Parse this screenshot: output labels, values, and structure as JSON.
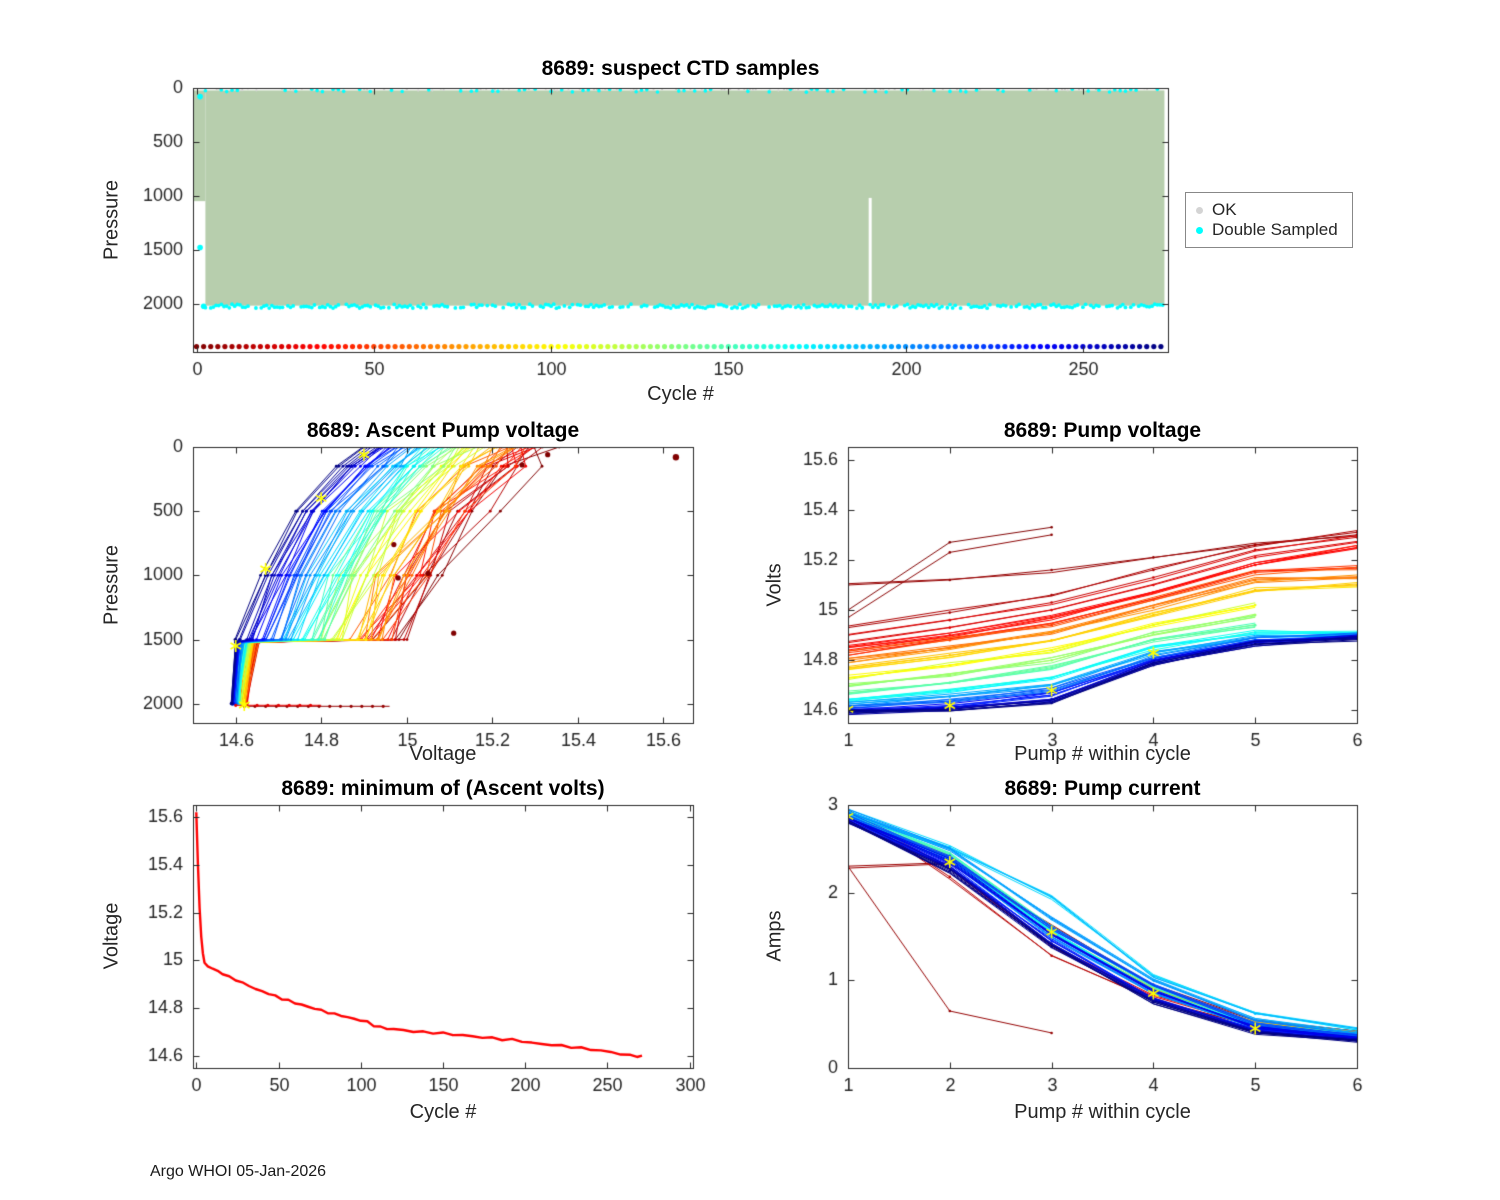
{
  "page": {
    "footer": "Argo WHOI 05-Jan-2026"
  },
  "colors": {
    "ok": "#d4d4d4",
    "double_sampled": "#00ffff",
    "ctd_fill": "#b7cead",
    "min_line": "#ff0000",
    "asterisk": "#ffff00",
    "axis": "#262626"
  },
  "chart_data": [
    {
      "id": "suspect-ctd-samples",
      "type": "scatter",
      "title": "8689: suspect CTD samples",
      "xlabel": "Cycle #",
      "ylabel": "Pressure",
      "xlim": [
        -1,
        274
      ],
      "xticks": [
        0,
        50,
        100,
        150,
        200,
        250
      ],
      "ylim": [
        0,
        2450
      ],
      "yticks": [
        0,
        500,
        1000,
        1500,
        2000
      ],
      "y_reversed": true,
      "ok_region": {
        "x0": 2.5,
        "x1": 273,
        "y0": 22,
        "y1": 2020
      },
      "left_partial_region": {
        "x0": -1,
        "x1": 2.5,
        "y0": 22,
        "y1": 1050
      },
      "white_gaps": [
        {
          "x": 190,
          "y0": 1020,
          "y1": 2020
        }
      ],
      "double_sampled": {
        "bottom_row_pressure": 2025,
        "top_row_pressure": 25,
        "row_x0": 2.5,
        "row_x1": 273,
        "extra_points": [
          [
            1,
            80
          ],
          [
            1,
            1480
          ],
          [
            2,
            2025
          ]
        ]
      },
      "cycle_color_row": {
        "pressure": 2400,
        "x0": 0,
        "x1": 272,
        "n_markers": 137,
        "colormap": "jet-reversed"
      },
      "legend": [
        {
          "label": "OK",
          "color": "#d4d4d4"
        },
        {
          "label": "Double Sampled",
          "color": "#00ffff"
        }
      ]
    },
    {
      "id": "ascent-pump-voltage",
      "type": "line",
      "title": "8689: Ascent Pump voltage",
      "xlabel": "Voltage",
      "ylabel": "Pressure",
      "xlim": [
        14.5,
        15.67
      ],
      "xticks": [
        14.6,
        14.8,
        15,
        15.2,
        15.4,
        15.6
      ],
      "ylim": [
        0,
        2150
      ],
      "yticks": [
        0,
        500,
        1000,
        1500,
        2000
      ],
      "y_reversed": true,
      "n_cycles": 270,
      "colormap": "jet-reversed",
      "family": {
        "pressures": [
          2000,
          1520,
          1500,
          1000,
          500,
          150,
          0
        ],
        "v_latest_cycle": [
          14.59,
          14.6,
          14.6,
          14.66,
          14.74,
          14.84,
          14.9
        ],
        "v_earliest_cycle": [
          14.62,
          14.65,
          15.0,
          15.08,
          15.18,
          15.28,
          15.32
        ],
        "n_lines": 80
      },
      "deep_segments": [
        {
          "v0": 14.62,
          "v1": 14.96,
          "p": 2020,
          "t": 0.02
        },
        {
          "v0": 14.6,
          "v1": 14.8,
          "p": 2012,
          "t": 0.1
        }
      ],
      "stray_points": [
        [
          15.11,
          1450
        ],
        [
          14.98,
          1020
        ],
        [
          15.05,
          985
        ],
        [
          15.33,
          60
        ],
        [
          15.27,
          140
        ],
        [
          14.97,
          760
        ]
      ],
      "outlier_point": [
        15.63,
        80
      ],
      "asterisks": [
        [
          14.9,
          60
        ],
        [
          14.8,
          400
        ],
        [
          14.67,
          950
        ],
        [
          14.6,
          1550
        ],
        [
          14.62,
          2010
        ]
      ]
    },
    {
      "id": "pump-voltage",
      "type": "line",
      "title": "8689: Pump voltage",
      "xlabel": "Pump # within cycle",
      "ylabel": "Volts",
      "xlim": [
        1,
        6
      ],
      "xticks": [
        1,
        2,
        3,
        4,
        5,
        6
      ],
      "ylim": [
        14.55,
        15.65
      ],
      "yticks": [
        14.6,
        14.8,
        15,
        15.2,
        15.4,
        15.6
      ],
      "y_reversed": false,
      "colormap": "jet-reversed",
      "series": [
        {
          "t": 0.0,
          "x": [
            1,
            2,
            3
          ],
          "y": [
            15.0,
            15.27,
            15.33
          ]
        },
        {
          "t": 0.01,
          "x": [
            1,
            2,
            3
          ],
          "y": [
            14.97,
            15.23,
            15.3
          ]
        },
        {
          "t": 0.02,
          "x": [
            1,
            2,
            3,
            4,
            5,
            6
          ],
          "y": [
            15.1,
            15.12,
            15.16,
            15.21,
            15.26,
            15.3
          ]
        },
        {
          "t": 0.04,
          "x": [
            1,
            2,
            3,
            4,
            5,
            6
          ],
          "y": [
            14.93,
            14.99,
            15.06,
            15.16,
            15.26,
            15.31
          ]
        },
        {
          "t": 0.07,
          "x": [
            1,
            2,
            3,
            4,
            5,
            6
          ],
          "y": [
            14.9,
            14.96,
            15.03,
            15.13,
            15.24,
            15.29
          ]
        },
        {
          "t": 0.1,
          "x": [
            1,
            2,
            3,
            4,
            5,
            6
          ],
          "y": [
            14.87,
            14.93,
            15.0,
            15.1,
            15.21,
            15.27
          ]
        },
        {
          "t": 0.14,
          "x": [
            1,
            2,
            3,
            4,
            5,
            6
          ],
          "y": [
            14.85,
            14.9,
            14.97,
            15.07,
            15.18,
            15.25
          ]
        },
        {
          "t": 0.18,
          "x": [
            1,
            2,
            3,
            4,
            5,
            6
          ],
          "y": [
            14.83,
            14.88,
            14.94,
            15.04,
            15.15,
            15.17
          ]
        },
        {
          "t": 0.25,
          "x": [
            1,
            2,
            3,
            4,
            5,
            6
          ],
          "y": [
            14.8,
            14.85,
            14.91,
            15.01,
            15.12,
            15.13
          ]
        },
        {
          "t": 0.32,
          "x": [
            1,
            2,
            3,
            4,
            5,
            6
          ],
          "y": [
            14.77,
            14.82,
            14.88,
            14.98,
            15.08,
            15.1
          ]
        },
        {
          "t": 0.4,
          "x": [
            1,
            2,
            3,
            4,
            5
          ],
          "y": [
            14.73,
            14.78,
            14.84,
            14.94,
            15.02
          ]
        },
        {
          "t": 0.47,
          "x": [
            1,
            2,
            3,
            4,
            5
          ],
          "y": [
            14.7,
            14.74,
            14.8,
            14.91,
            14.98
          ]
        },
        {
          "t": 0.54,
          "x": [
            1,
            2,
            3,
            4,
            5
          ],
          "y": [
            14.67,
            14.71,
            14.77,
            14.88,
            14.94
          ]
        },
        {
          "t": 0.62,
          "x": [
            1,
            2,
            3,
            4,
            5,
            6
          ],
          "y": [
            14.645,
            14.68,
            14.73,
            14.85,
            14.91,
            14.91
          ]
        },
        {
          "t": 0.7,
          "x": [
            1,
            2,
            3,
            4,
            5,
            6
          ],
          "y": [
            14.625,
            14.655,
            14.7,
            14.83,
            14.89,
            14.9
          ]
        },
        {
          "t": 0.78,
          "x": [
            1,
            2,
            3,
            4,
            5,
            6
          ],
          "y": [
            14.61,
            14.635,
            14.68,
            14.81,
            14.88,
            14.9
          ]
        },
        {
          "t": 0.86,
          "x": [
            1,
            2,
            3,
            4,
            5,
            6
          ],
          "y": [
            14.6,
            14.62,
            14.66,
            14.8,
            14.875,
            14.895
          ]
        },
        {
          "t": 0.93,
          "x": [
            1,
            2,
            3,
            4,
            5,
            6
          ],
          "y": [
            14.595,
            14.61,
            14.645,
            14.79,
            14.87,
            14.89
          ]
        },
        {
          "t": 1.0,
          "x": [
            1,
            2,
            3,
            4,
            5,
            6
          ],
          "y": [
            14.59,
            14.6,
            14.63,
            14.78,
            14.865,
            14.885
          ]
        }
      ],
      "asterisks": [
        [
          1,
          14.605
        ],
        [
          2,
          14.62
        ],
        [
          3,
          14.68
        ],
        [
          4,
          14.83
        ]
      ]
    },
    {
      "id": "minimum-ascent-volts",
      "type": "line",
      "title": "8689: minimum of (Ascent volts)",
      "xlabel": "Cycle #",
      "ylabel": "Voltage",
      "xlim": [
        -2,
        302
      ],
      "xticks": [
        0,
        50,
        100,
        150,
        200,
        250,
        300
      ],
      "ylim": [
        14.55,
        15.65
      ],
      "yticks": [
        14.6,
        14.8,
        15,
        15.2,
        15.4,
        15.6
      ],
      "y_reversed": false,
      "line_color": "#ff0000",
      "points": [
        [
          0,
          15.62
        ],
        [
          1,
          15.4
        ],
        [
          2,
          15.22
        ],
        [
          3,
          15.1
        ],
        [
          4,
          15.03
        ],
        [
          5,
          14.99
        ],
        [
          7,
          14.975
        ],
        [
          10,
          14.965
        ],
        [
          13,
          14.955
        ],
        [
          16,
          14.945
        ],
        [
          20,
          14.93
        ],
        [
          24,
          14.92
        ],
        [
          28,
          14.905
        ],
        [
          32,
          14.895
        ],
        [
          36,
          14.88
        ],
        [
          40,
          14.87
        ],
        [
          44,
          14.862
        ],
        [
          48,
          14.85
        ],
        [
          52,
          14.84
        ],
        [
          56,
          14.832
        ],
        [
          60,
          14.822
        ],
        [
          64,
          14.815
        ],
        [
          68,
          14.805
        ],
        [
          72,
          14.8
        ],
        [
          76,
          14.79
        ],
        [
          80,
          14.783
        ],
        [
          84,
          14.775
        ],
        [
          88,
          14.77
        ],
        [
          92,
          14.762
        ],
        [
          96,
          14.755
        ],
        [
          100,
          14.75
        ],
        [
          104,
          14.742
        ],
        [
          108,
          14.728
        ],
        [
          112,
          14.72
        ],
        [
          116,
          14.715
        ],
        [
          120,
          14.712
        ],
        [
          126,
          14.708
        ],
        [
          132,
          14.703
        ],
        [
          138,
          14.7
        ],
        [
          144,
          14.698
        ],
        [
          150,
          14.695
        ],
        [
          156,
          14.69
        ],
        [
          162,
          14.687
        ],
        [
          168,
          14.682
        ],
        [
          174,
          14.678
        ],
        [
          180,
          14.675
        ],
        [
          186,
          14.67
        ],
        [
          192,
          14.668
        ],
        [
          198,
          14.662
        ],
        [
          204,
          14.655
        ],
        [
          210,
          14.65
        ],
        [
          216,
          14.647
        ],
        [
          222,
          14.643
        ],
        [
          228,
          14.638
        ],
        [
          234,
          14.633
        ],
        [
          240,
          14.628
        ],
        [
          246,
          14.622
        ],
        [
          252,
          14.617
        ],
        [
          258,
          14.608
        ],
        [
          264,
          14.602
        ],
        [
          268,
          14.6
        ],
        [
          271,
          14.598
        ]
      ]
    },
    {
      "id": "pump-current",
      "type": "line",
      "title": "8689: Pump current",
      "xlabel": "Pump # within cycle",
      "ylabel": "Amps",
      "xlim": [
        1,
        6
      ],
      "xticks": [
        1,
        2,
        3,
        4,
        5,
        6
      ],
      "ylim": [
        0,
        3
      ],
      "yticks": [
        0,
        1,
        2,
        3
      ],
      "y_reversed": false,
      "colormap": "jet-reversed",
      "series": [
        {
          "t": 0.02,
          "x": [
            1,
            2,
            3
          ],
          "y": [
            2.3,
            0.65,
            0.4
          ]
        },
        {
          "t": 0.03,
          "x": [
            1,
            2,
            3,
            4,
            5,
            6
          ],
          "y": [
            2.28,
            2.33,
            1.62,
            0.95,
            0.55,
            0.42
          ]
        },
        {
          "t": 0.06,
          "x": [
            1,
            2,
            3,
            4,
            5,
            6
          ],
          "y": [
            2.95,
            2.18,
            1.28,
            0.78,
            0.48,
            0.4
          ]
        },
        {
          "t": 0.1,
          "x": [
            1,
            2,
            3,
            4,
            5,
            6
          ],
          "y": [
            2.92,
            2.28,
            1.4,
            0.83,
            0.5,
            0.41
          ]
        },
        {
          "t": 0.3,
          "x": [
            1,
            2,
            3,
            4,
            5,
            6
          ],
          "y": [
            2.88,
            2.4,
            1.55,
            0.9,
            0.52,
            0.4
          ]
        },
        {
          "t": 0.55,
          "x": [
            1,
            2,
            3,
            4,
            5,
            6
          ],
          "y": [
            2.9,
            2.45,
            1.62,
            0.92,
            0.5,
            0.38
          ]
        },
        {
          "t": 0.62,
          "x": [
            1,
            2,
            3,
            4,
            5,
            6
          ],
          "y": [
            2.87,
            2.38,
            1.55,
            0.88,
            0.48,
            0.36
          ]
        },
        {
          "t": 0.68,
          "x": [
            1,
            2,
            3,
            4,
            5,
            6
          ],
          "y": [
            2.92,
            2.52,
            1.95,
            1.05,
            0.62,
            0.45
          ]
        },
        {
          "t": 0.72,
          "x": [
            1,
            2,
            3,
            4,
            5,
            6
          ],
          "y": [
            2.92,
            2.5,
            1.7,
            1.0,
            0.55,
            0.4
          ]
        },
        {
          "t": 0.76,
          "x": [
            1,
            2,
            3,
            4,
            5,
            6
          ],
          "y": [
            2.85,
            2.35,
            1.5,
            0.85,
            0.46,
            0.35
          ]
        },
        {
          "t": 0.8,
          "x": [
            1,
            2,
            3,
            4,
            5,
            6
          ],
          "y": [
            2.88,
            2.42,
            1.6,
            0.95,
            0.5,
            0.37
          ]
        },
        {
          "t": 0.85,
          "x": [
            1,
            2,
            3,
            4,
            5,
            6
          ],
          "y": [
            2.83,
            2.3,
            1.45,
            0.8,
            0.44,
            0.33
          ]
        },
        {
          "t": 0.9,
          "x": [
            1,
            2,
            3,
            4,
            5,
            6
          ],
          "y": [
            2.86,
            2.36,
            1.52,
            0.88,
            0.46,
            0.34
          ]
        },
        {
          "t": 0.95,
          "x": [
            1,
            2,
            3,
            4,
            5,
            6
          ],
          "y": [
            2.82,
            2.28,
            1.42,
            0.78,
            0.42,
            0.32
          ]
        },
        {
          "t": 1.0,
          "x": [
            1,
            2,
            3,
            4,
            5,
            6
          ],
          "y": [
            2.8,
            2.25,
            1.38,
            0.75,
            0.4,
            0.31
          ]
        }
      ],
      "asterisks": [
        [
          1,
          2.87
        ],
        [
          2,
          2.35
        ],
        [
          3,
          1.55
        ],
        [
          4,
          0.85
        ],
        [
          5,
          0.45
        ]
      ]
    }
  ]
}
